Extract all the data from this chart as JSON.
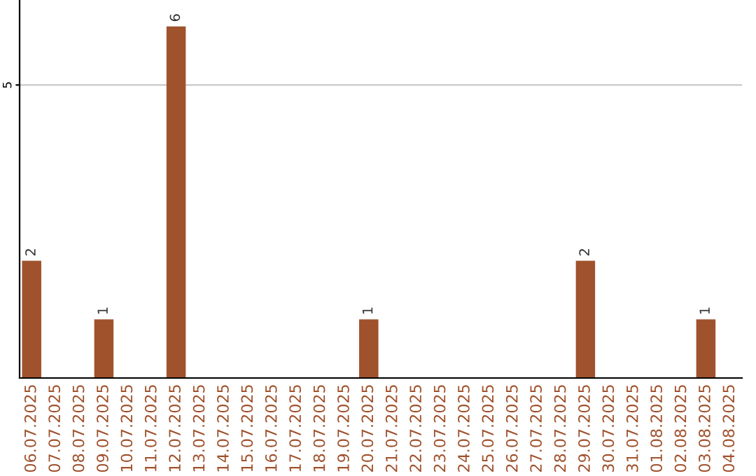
{
  "chart_data": {
    "type": "bar",
    "categories": [
      "06.07.2025",
      "07.07.2025",
      "08.07.2025",
      "09.07.2025",
      "10.07.2025",
      "11.07.2025",
      "12.07.2025",
      "13.07.2025",
      "14.07.2025",
      "15.07.2025",
      "16.07.2025",
      "17.07.2025",
      "18.07.2025",
      "19.07.2025",
      "20.07.2025",
      "21.07.2025",
      "22.07.2025",
      "23.07.2025",
      "24.07.2025",
      "25.07.2025",
      "26.07.2025",
      "27.07.2025",
      "28.07.2025",
      "29.07.2025",
      "30.07.2025",
      "31.07.2025",
      "01.08.2025",
      "02.08.2025",
      "03.08.2025",
      "04.08.2025"
    ],
    "values": [
      2,
      0,
      0,
      1,
      0,
      0,
      6,
      0,
      0,
      0,
      0,
      0,
      0,
      0,
      1,
      0,
      0,
      0,
      0,
      0,
      0,
      0,
      0,
      2,
      0,
      0,
      0,
      0,
      1,
      0
    ],
    "value_labels": [
      "2",
      null,
      null,
      "1",
      null,
      null,
      "6",
      null,
      null,
      null,
      null,
      null,
      null,
      null,
      "1",
      null,
      null,
      null,
      null,
      null,
      null,
      null,
      null,
      "2",
      null,
      null,
      null,
      null,
      "1",
      null
    ],
    "color": "#a0522d",
    "ylim": [
      0,
      6.45
    ],
    "yticks": [
      5
    ],
    "grid": "y",
    "legend": false
  }
}
